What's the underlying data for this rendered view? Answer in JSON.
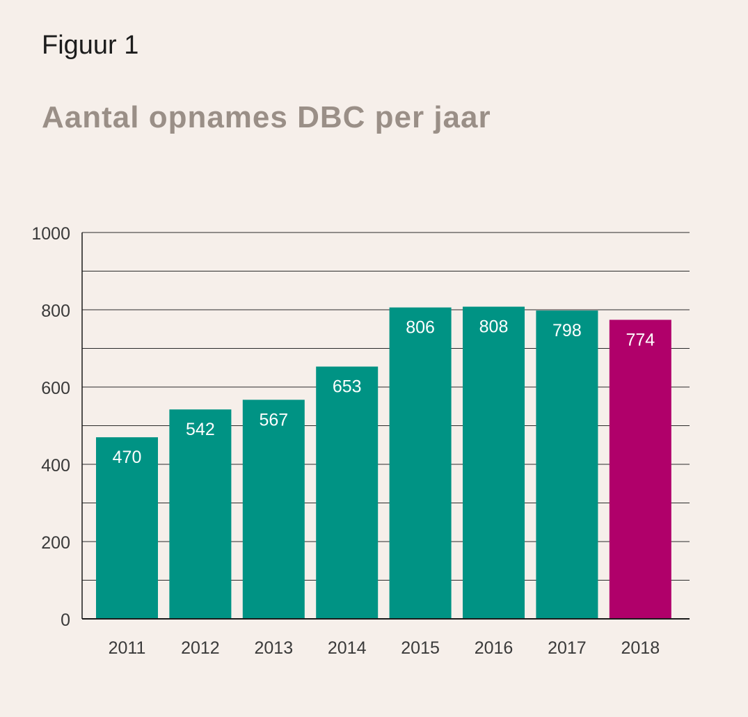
{
  "figure_label": "Figuur 1",
  "chart_data": {
    "type": "bar",
    "title": "Aantal opnames DBC per jaar",
    "categories": [
      "2011",
      "2012",
      "2013",
      "2014",
      "2015",
      "2016",
      "2017",
      "2018"
    ],
    "values": [
      470,
      542,
      567,
      653,
      806,
      808,
      798,
      774
    ],
    "value_labels": [
      "470",
      "542",
      "567",
      "653",
      "806",
      "808",
      "798",
      "774"
    ],
    "colors": [
      "#009384",
      "#009384",
      "#009384",
      "#009384",
      "#009384",
      "#009384",
      "#009384",
      "#b0006a"
    ],
    "label_color": "#ffffff",
    "ylim": [
      0,
      1000
    ],
    "yticks": [
      0,
      200,
      400,
      600,
      800,
      1000
    ],
    "ytick_labels": [
      "0",
      "200",
      "400",
      "600",
      "800",
      "1000"
    ],
    "grid_step": 100,
    "grid": true,
    "xlabel": "",
    "ylabel": ""
  }
}
